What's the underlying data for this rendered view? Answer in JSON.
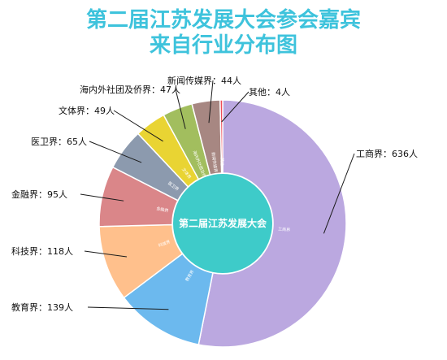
{
  "title_line1": "第二届江苏发展大会参会嘉宾",
  "title_line2": "来自行业分布图",
  "center_label": "第二届江苏发展大会",
  "colors": {
    "title": "#3EC3DC",
    "center": "#3ECBC9"
  },
  "chart_data": {
    "type": "pie",
    "title": "第二届江苏发展大会参会嘉宾来自行业分布图",
    "unit": "人",
    "categories": [
      "工商界",
      "教育界",
      "科技界",
      "金融界",
      "医卫界",
      "文体界",
      "海内外社团及侨界",
      "新闻传媒界",
      "其他"
    ],
    "values": [
      636,
      139,
      118,
      95,
      65,
      49,
      47,
      44,
      4
    ],
    "labels": [
      "工商界：636人",
      "教育界：139人",
      "科技界：118人",
      "金融界：95人",
      "医卫界：65人",
      "文体界：49人",
      "海内外社团及侨界：47人",
      "新闻传媒界：44人",
      "其他：4人"
    ],
    "inner_labels": [
      "工商界",
      "教育界",
      "科技界",
      "金融界",
      "医卫界",
      "文体界",
      "海内外社团及侨界",
      "新闻传媒界",
      "其他"
    ],
    "colors": [
      "#BBA8E0",
      "#6CB9EE",
      "#FFC08C",
      "#DA8689",
      "#8C9AAE",
      "#E9D433",
      "#A2BE5E",
      "#A78782",
      "#EE4C58"
    ]
  }
}
